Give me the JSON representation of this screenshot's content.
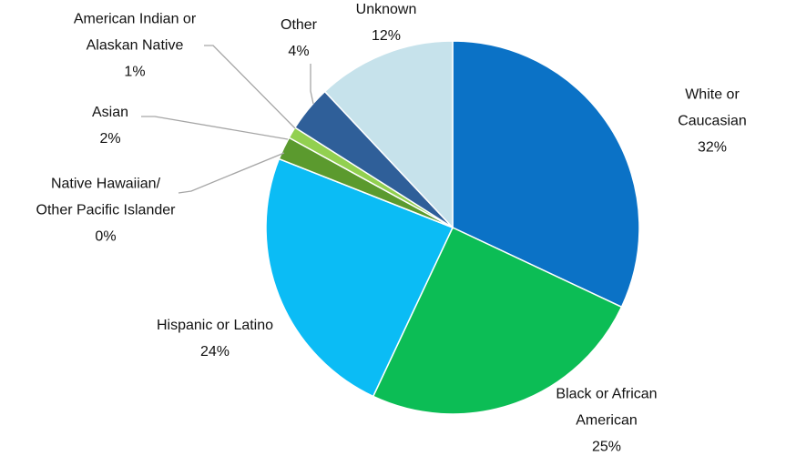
{
  "chart_data": {
    "type": "pie",
    "categories": [
      "White or Caucasian",
      "Black or African\nAmerican",
      "Hispanic or Latino",
      "Native Hawaiian/\nOther Pacific Islander",
      "Asian",
      "American Indian or\nAlaskan Native",
      "Other",
      "Unknown"
    ],
    "values": [
      32,
      25,
      24,
      0,
      2,
      1,
      4,
      12
    ],
    "value_labels": [
      "32%",
      "25%",
      "24%",
      "0%",
      "2%",
      "1%",
      "4%",
      "12%"
    ],
    "colors": [
      "#0b72c6",
      "#0cbd55",
      "#0bbcf5",
      "#2f5a1a",
      "#5b9a2e",
      "#92d050",
      "#2f5f99",
      "#c6e2eb"
    ]
  }
}
